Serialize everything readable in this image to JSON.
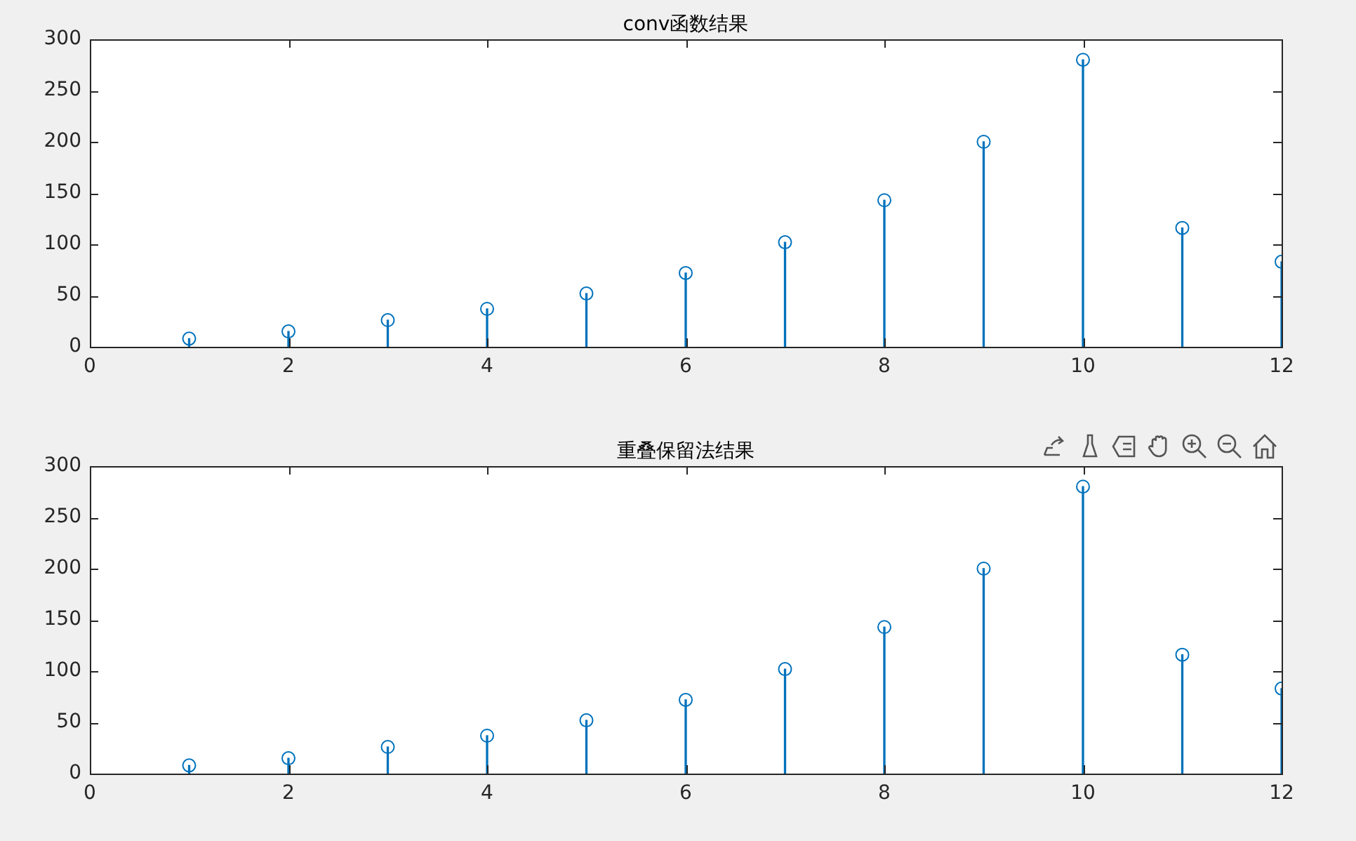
{
  "chart_data": [
    {
      "type": "lollipop",
      "title": "conv函数结果",
      "x": [
        1,
        2,
        3,
        4,
        5,
        6,
        7,
        8,
        9,
        10,
        11,
        12
      ],
      "values": [
        8,
        15,
        26,
        37,
        52,
        72,
        102,
        143,
        200,
        280,
        116,
        83
      ],
      "color": "#0072bd",
      "marker": "circle",
      "xlim": [
        0,
        12
      ],
      "xticks": [
        0,
        2,
        4,
        6,
        8,
        10,
        12
      ],
      "ylim": [
        0,
        300
      ],
      "yticks": [
        0,
        50,
        100,
        150,
        200,
        250,
        300
      ]
    },
    {
      "type": "lollipop",
      "title": "重叠保留法结果",
      "x": [
        1,
        2,
        3,
        4,
        5,
        6,
        7,
        8,
        9,
        10,
        11,
        12
      ],
      "values": [
        8,
        15,
        26,
        37,
        52,
        72,
        102,
        143,
        200,
        280,
        116,
        83
      ],
      "color": "#0072bd",
      "marker": "circle",
      "xlim": [
        0,
        12
      ],
      "xticks": [
        0,
        2,
        4,
        6,
        8,
        10,
        12
      ],
      "ylim": [
        0,
        300
      ],
      "yticks": [
        0,
        50,
        100,
        150,
        200,
        250,
        300
      ]
    }
  ]
}
